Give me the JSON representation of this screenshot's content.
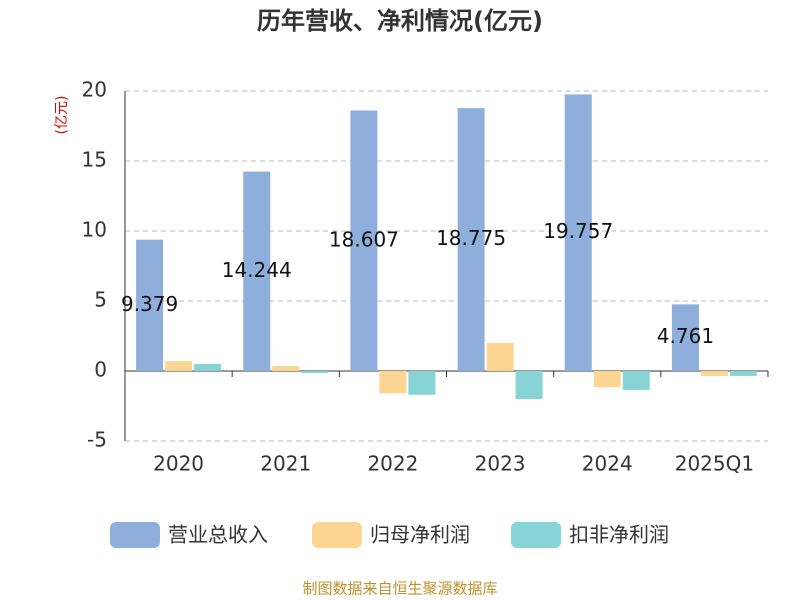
{
  "chart_data": {
    "type": "bar",
    "title": "历年营收、净利情况(亿元)",
    "y_label": "(亿元)",
    "categories": [
      "2020",
      "2021",
      "2022",
      "2023",
      "2024",
      "2025Q1"
    ],
    "series": [
      {
        "name": "营业总收入",
        "color": "#8eaedb",
        "values": [
          9.379,
          14.244,
          18.607,
          18.775,
          19.757,
          4.761
        ]
      },
      {
        "name": "归母净利润",
        "color": "#fdd592",
        "values": [
          0.7,
          0.35,
          -1.6,
          2.0,
          -1.15,
          -0.35
        ]
      },
      {
        "name": "扣非净利润",
        "color": "#86d4d6",
        "values": [
          0.5,
          -0.15,
          -1.7,
          -2.0,
          -1.35,
          -0.35
        ]
      }
    ],
    "ylim": [
      -5,
      20
    ],
    "yticks": [
      -5,
      0,
      5,
      10,
      15,
      20
    ],
    "grid": true,
    "source": "制图数据来自恒生聚源数据库"
  }
}
